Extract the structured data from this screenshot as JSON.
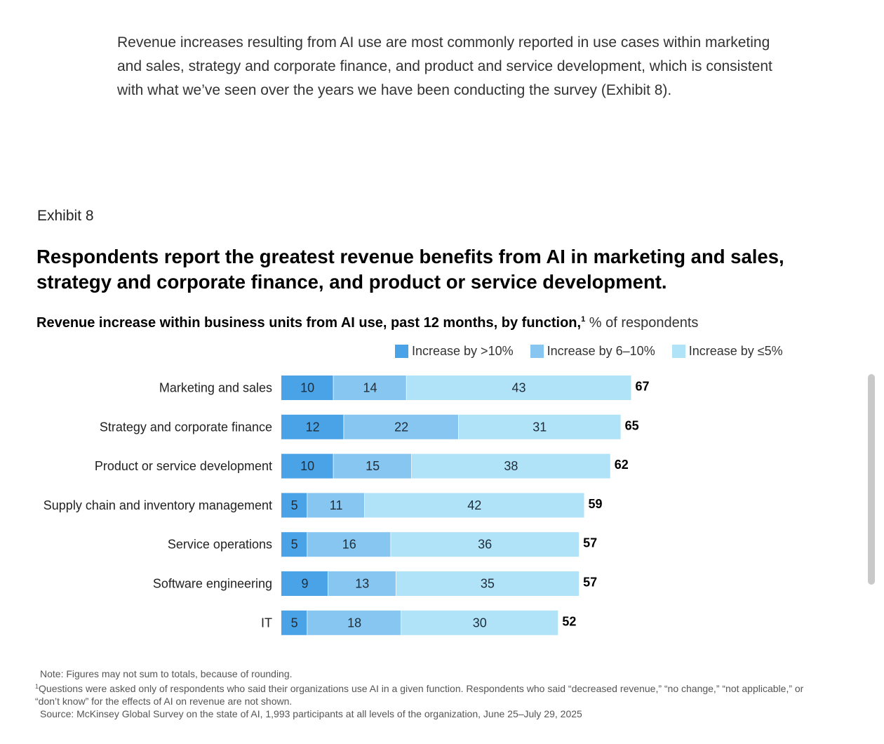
{
  "intro_text": "Revenue increases resulting from AI use are most commonly reported in use cases within marketing and sales, strategy and corporate finance, and product and service development, which is consistent with what we’ve seen over the years we have been conducting the survey (Exhibit 8).",
  "exhibit_label": "Exhibit 8",
  "colors": {
    "increase_gt_10": "#4aa3e6",
    "increase_6_10": "#86c6f0",
    "increase_le_5": "#b0e3f8",
    "text": "#222222",
    "total_text": "#000000"
  },
  "chart_data": {
    "type": "bar",
    "orientation": "horizontal",
    "stacked": true,
    "title": "Respondents report the greatest revenue benefits from AI in marketing and sales, strategy and corporate finance, and product or service development.",
    "subtitle_bold": "Revenue increase within business units from AI use, past 12 months, by function,",
    "subtitle_footnote": "1",
    "subtitle_unit": "% of respondents",
    "legend_position": "top-right",
    "grid": false,
    "categories": [
      "Marketing and sales",
      "Strategy and corporate finance",
      "Product or service development",
      "Supply chain and inventory management",
      "Service operations",
      "Software engineering",
      "IT"
    ],
    "series": [
      {
        "name": "Increase by >10%",
        "values": [
          10,
          12,
          10,
          5,
          5,
          9,
          5
        ]
      },
      {
        "name": "Increase by 6–10%",
        "values": [
          14,
          22,
          15,
          11,
          16,
          13,
          18
        ]
      },
      {
        "name": "Increase by ≤5%",
        "values": [
          43,
          31,
          38,
          42,
          36,
          35,
          30
        ]
      }
    ],
    "totals": [
      67,
      65,
      62,
      59,
      57,
      57,
      52
    ]
  },
  "notes": {
    "note": "Note: Figures may not sum to totals, because of rounding.",
    "footnote_marker": "1",
    "footnote": "Questions were asked only of respondents who said their organizations use AI in a given function. Respondents who said “decreased revenue,” “no change,” “not applicable,” or “don’t know” for the effects of AI on revenue are not shown.",
    "source": "Source: McKinsey Global Survey on the state of AI, 1,993 participants at all levels of the organization, June 25–July 29, 2025"
  }
}
